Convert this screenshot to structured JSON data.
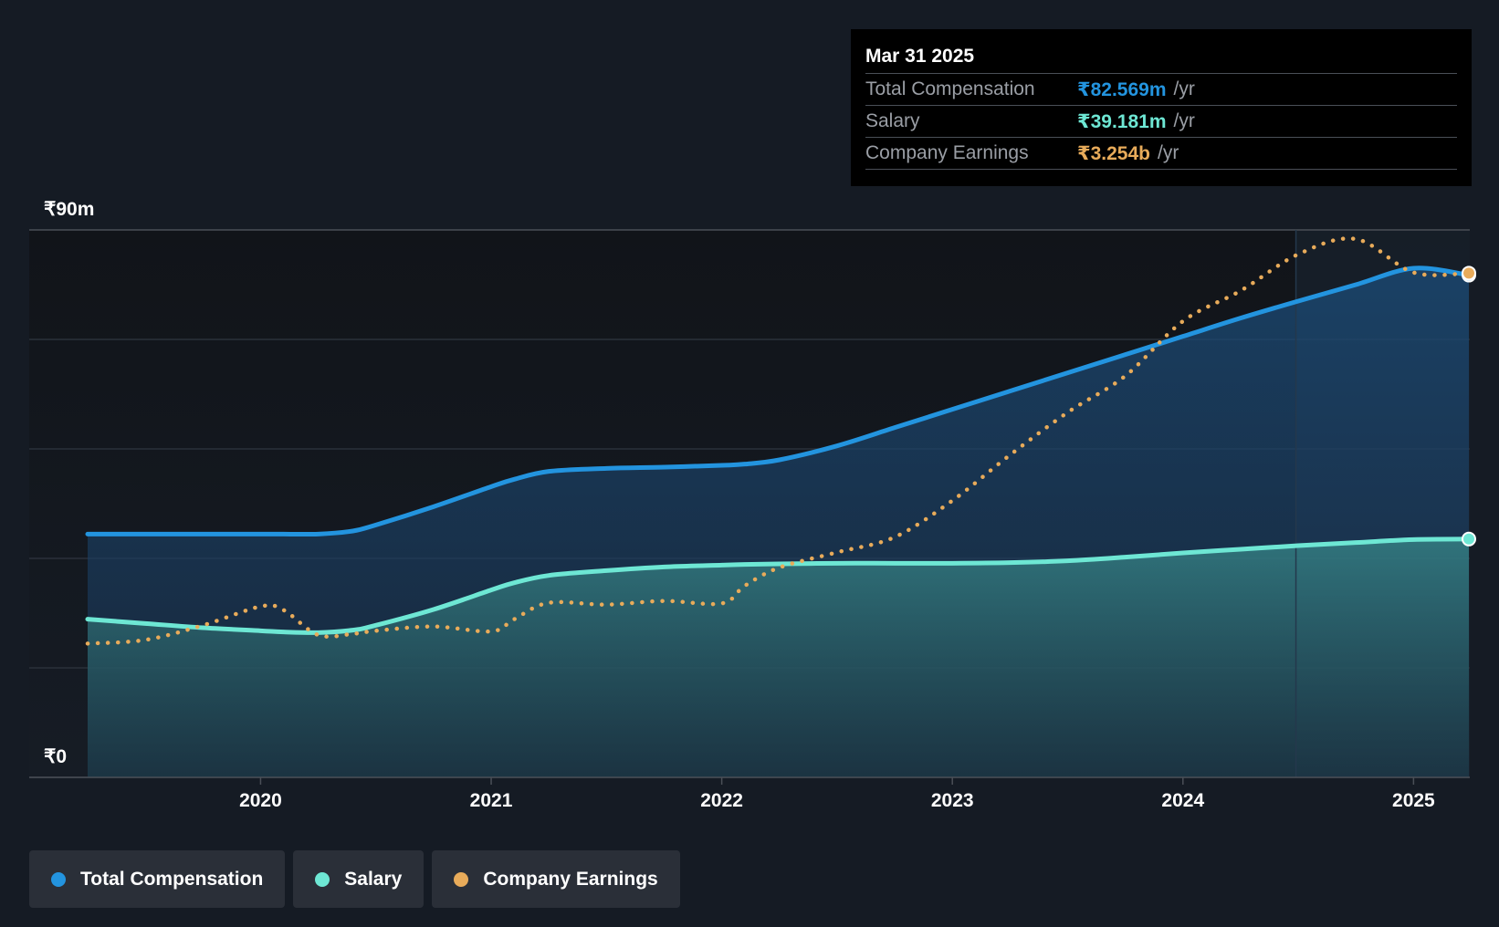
{
  "chart_data": {
    "type": "line",
    "ylim": [
      0,
      90
    ],
    "y_unit": "₹m",
    "x_ticks": [
      2020,
      2021,
      2022,
      2023,
      2024,
      2025
    ],
    "tick_labels": {
      "y_max": "₹90m",
      "y_min": "₹0"
    },
    "x": [
      2019.25,
      2019.5,
      2019.75,
      2020.0,
      2020.1,
      2020.25,
      2020.4,
      2020.5,
      2020.75,
      2021.0,
      2021.1,
      2021.25,
      2021.5,
      2021.75,
      2022.0,
      2022.1,
      2022.25,
      2022.5,
      2022.75,
      2023.0,
      2023.25,
      2023.5,
      2023.75,
      2024.0,
      2024.25,
      2024.5,
      2024.75,
      2025.0,
      2025.24
    ],
    "series": [
      {
        "name": "Total Compensation",
        "color": "#2394df",
        "style": "solid-area",
        "values": [
          40.0,
          40.0,
          40.0,
          40.0,
          40.0,
          40.0,
          40.5,
          41.5,
          44.5,
          47.8,
          49.0,
          50.3,
          50.8,
          51.0,
          51.3,
          51.5,
          52.2,
          54.5,
          57.5,
          60.5,
          63.5,
          66.5,
          69.5,
          72.5,
          75.5,
          78.3,
          81.0,
          83.7,
          82.569
        ]
      },
      {
        "name": "Salary",
        "color": "#6ee7d4",
        "style": "solid-area",
        "values": [
          26.0,
          25.3,
          24.6,
          24.1,
          23.9,
          23.8,
          24.2,
          25.0,
          27.6,
          30.8,
          32.0,
          33.2,
          34.0,
          34.6,
          34.9,
          35.0,
          35.1,
          35.2,
          35.2,
          35.2,
          35.3,
          35.6,
          36.2,
          36.9,
          37.5,
          38.1,
          38.6,
          39.1,
          39.181
        ]
      },
      {
        "name": "Company Earnings",
        "color": "#e8ab5a",
        "style": "dotted",
        "note_scale": "plotted on independent scale",
        "values": [
          22.0,
          22.6,
          25.0,
          28.1,
          27.5,
          23.4,
          23.6,
          24.1,
          24.8,
          24.0,
          26.0,
          28.7,
          28.4,
          29.0,
          28.6,
          31.5,
          34.5,
          37.0,
          39.5,
          45.5,
          53.0,
          60.0,
          66.0,
          75.0,
          80.0,
          86.0,
          88.5,
          83.0,
          82.9
        ]
      }
    ],
    "tooltip": {
      "date": "Mar 31 2025",
      "rows": [
        {
          "label": "Total Compensation",
          "value": "₹82.569m",
          "unit": "/yr",
          "color": "#2394df"
        },
        {
          "label": "Salary",
          "value": "₹39.181m",
          "unit": "/yr",
          "color": "#6ee7d4"
        },
        {
          "label": "Company Earnings",
          "value": "₹3.254b",
          "unit": "/yr",
          "color": "#e8ab5a"
        }
      ]
    },
    "legend": [
      {
        "label": "Total Compensation",
        "color": "#2394df"
      },
      {
        "label": "Salary",
        "color": "#6ee7d4"
      },
      {
        "label": "Company Earnings",
        "color": "#e8ab5a"
      }
    ]
  }
}
